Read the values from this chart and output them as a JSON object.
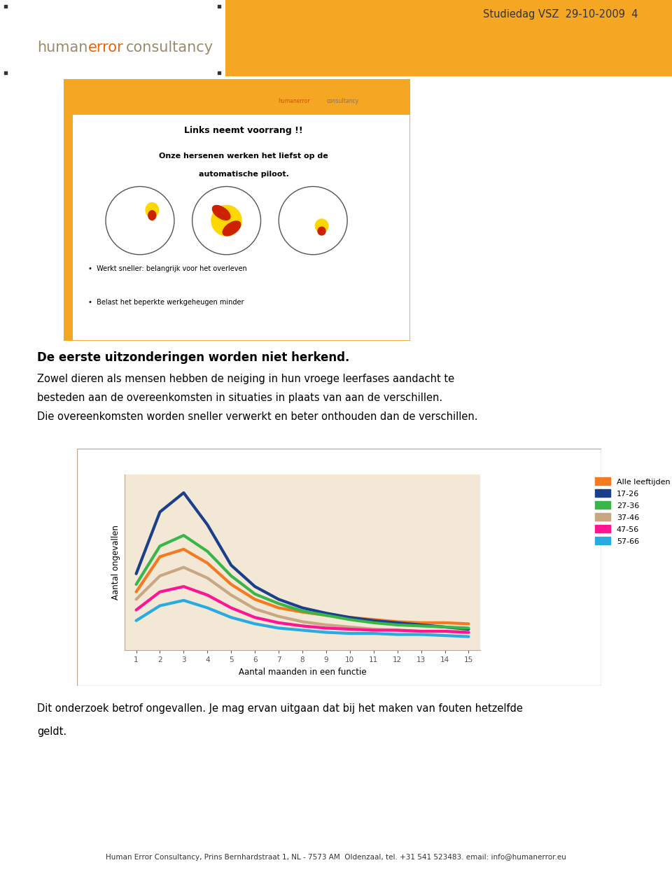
{
  "title_header": "Studiedag VSZ  29-10-2009  4",
  "header_orange_color": "#F5A623",
  "slide_title": "Links neemt voorrang !!",
  "slide_subtitle1": "Onze hersenen werken het liefst op de",
  "slide_subtitle2": "automatische piloot.",
  "slide_bullets": [
    "Werkt sneller: belangrijk voor het overleven",
    "Belast het beperkte werkgeheugen minder"
  ],
  "section_heading": "De eerste uitzonderingen worden niet herkend.",
  "body_text_line1": "Zowel dieren als mensen hebben de neiging in hun vroege leerfases aandacht te",
  "body_text_line2": "besteden aan de overeenkomsten in situaties in plaats van aan de verschillen.",
  "body_text_line3": "Die overeenkomsten worden sneller verwerkt en beter onthouden dan de verschillen.",
  "bottom_text_line1": "Dit onderzoek betrof ongevallen. Je mag ervan uitgaan dat bij het maken van fouten hetzelfde",
  "bottom_text_line2": "geldt.",
  "chart_bg_color": "#F2E8D5",
  "chart_ylabel": "Aantal ongevallen",
  "chart_xlabel": "Aantal maanden in een functie",
  "chart_x_ticks": [
    1,
    2,
    3,
    4,
    5,
    6,
    7,
    8,
    9,
    10,
    11,
    12,
    13,
    14,
    15
  ],
  "legend_labels": [
    "Alle leeftijden",
    "17-26",
    "27-36",
    "37-46",
    "47-56",
    "57-66"
  ],
  "legend_colors": [
    "#F47920",
    "#1B3F8B",
    "#39B54A",
    "#C8A882",
    "#FF1493",
    "#29ABE2"
  ],
  "series_alle": [
    55,
    88,
    95,
    82,
    62,
    48,
    40,
    36,
    33,
    31,
    29,
    27,
    26,
    26,
    25
  ],
  "series_17_26": [
    72,
    130,
    148,
    118,
    80,
    60,
    48,
    40,
    35,
    31,
    28,
    26,
    24,
    22,
    20
  ],
  "series_27_36": [
    62,
    98,
    108,
    93,
    70,
    53,
    44,
    37,
    33,
    29,
    26,
    24,
    23,
    22,
    21
  ],
  "series_37_46": [
    48,
    70,
    78,
    68,
    52,
    39,
    32,
    27,
    24,
    22,
    20,
    19,
    18,
    18,
    17
  ],
  "series_47_56": [
    38,
    55,
    60,
    52,
    40,
    31,
    26,
    23,
    21,
    20,
    19,
    19,
    18,
    18,
    17
  ],
  "series_57_66": [
    28,
    42,
    47,
    40,
    31,
    25,
    21,
    19,
    17,
    16,
    16,
    15,
    15,
    14,
    13
  ],
  "footer_text": "Human Error Consultancy, Prins Bernhardstraat 1, NL - 7573 AM  Oldenzaal, tel. +31 541 523483. email: info@humanerror.eu",
  "slide_border_color": "#F5A623",
  "page_bg_color": "#FFFFFF",
  "logo_human_color": "#9B8B6E",
  "logo_error_color": "#E8630A",
  "logo_consultancy_color": "#9B8B6E"
}
